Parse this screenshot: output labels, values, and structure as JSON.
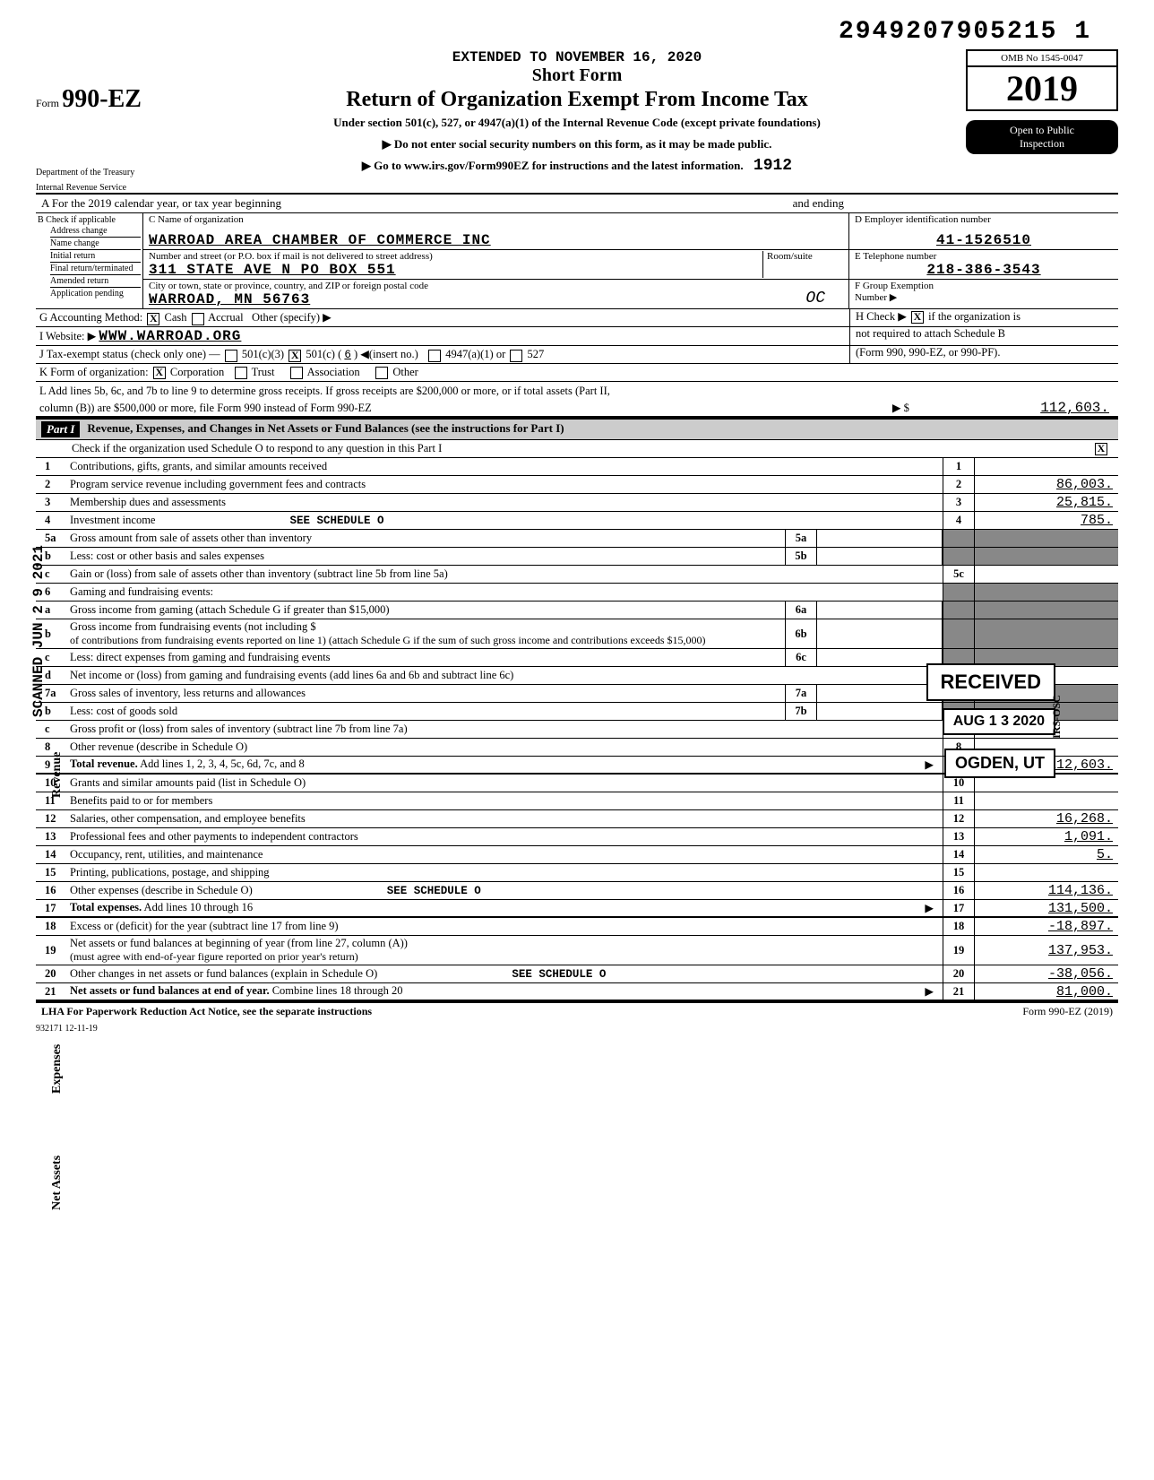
{
  "page_number_top": "2949207905215  1",
  "header": {
    "form_prefix": "Form",
    "form_number": "990-EZ",
    "extended_line": "EXTENDED TO NOVEMBER 16, 2020",
    "short_form": "Short Form",
    "title": "Return of Organization Exempt From Income Tax",
    "under_section": "Under section 501(c), 527, or 4947(a)(1) of the Internal Revenue Code (except private foundations)",
    "no_ssn": "▶ Do not enter social security numbers on this form, as it may be made public.",
    "goto": "▶ Go to www.irs.gov/Form990EZ for instructions and the latest information.",
    "handwritten_code": "1912",
    "omb": "OMB No  1545-0047",
    "year": "2019",
    "open_public": "Open to Public",
    "inspection": "Inspection",
    "dept1": "Department of the Treasury",
    "dept2": "Internal Revenue Service"
  },
  "row_a": {
    "label": "A   For the 2019 calendar year, or tax year beginning",
    "ending": "and ending"
  },
  "block_b": {
    "header": "B  Check if applicable",
    "items": [
      "Address change",
      "Name change",
      "Initial return",
      "Final return/terminated",
      "Amended return",
      "Application pending"
    ]
  },
  "block_c": {
    "name_label": "C Name of organization",
    "name_value": "WARROAD AREA CHAMBER OF COMMERCE INC",
    "addr_label": "Number and street (or P.O. box if mail is not delivered to street address)",
    "addr_value": "311 STATE AVE N PO BOX 551",
    "room_label": "Room/suite",
    "city_label": "City or town, state or province, country, and ZIP or foreign postal code",
    "city_value": "WARROAD, MN   56763",
    "handwritten_oc": "OC"
  },
  "block_d": {
    "ein_label": "D Employer identification number",
    "ein_value": "41-1526510",
    "phone_label": "E  Telephone number",
    "phone_value": "218-386-3543",
    "group_label": "F  Group Exemption",
    "group_label2": "Number ▶"
  },
  "row_g": {
    "label": "G   Accounting Method:",
    "cash": "Cash",
    "accrual": "Accrual",
    "other": "Other (specify) ▶"
  },
  "row_h": "H  Check  ▶         if the organization is",
  "row_h2": "not required to attach Schedule B",
  "row_h3": "(Form 990, 990-EZ, or 990-PF).",
  "row_i": {
    "label": "I    Website: ▶",
    "value": "WWW.WARROAD.ORG"
  },
  "row_j": {
    "label": "J    Tax-exempt status (check only one) —",
    "opt1": "501(c)(3)",
    "opt2": "501(c) (",
    "opt2v": "6",
    "opt2b": ") ◀(insert no.)",
    "opt3": "4947(a)(1) or",
    "opt4": "527"
  },
  "row_k": {
    "label": "K   Form of organization:",
    "corp": "Corporation",
    "trust": "Trust",
    "assoc": "Association",
    "other": "Other"
  },
  "row_l": {
    "line1": "L   Add lines 5b, 6c, and 7b to line 9 to determine gross receipts. If gross receipts are $200,000 or more, or if total assets (Part II,",
    "line2": "column (B)) are $500,000 or more, file Form 990 instead of Form 990-EZ",
    "arrow": "▶  $",
    "value": "112,603."
  },
  "part1": {
    "label": "Part I",
    "title": "Revenue, Expenses, and Changes in Net Assets or Fund Balances (see the instructions for Part I)",
    "check_line": "Check if the organization used Schedule O to respond to any question in this Part I",
    "check_x": "X"
  },
  "lines": {
    "1": {
      "n": "1",
      "d": "Contributions, gifts, grants, and similar amounts received",
      "rn": "1",
      "v": ""
    },
    "2": {
      "n": "2",
      "d": "Program service revenue including government fees and contracts",
      "rn": "2",
      "v": "86,003."
    },
    "3": {
      "n": "3",
      "d": "Membership dues and assessments",
      "rn": "3",
      "v": "25,815."
    },
    "4": {
      "n": "4",
      "d": "Investment income",
      "note": "SEE SCHEDULE O",
      "rn": "4",
      "v": "785."
    },
    "5a": {
      "n": "5a",
      "d": "Gross amount from sale of assets other than inventory",
      "mn": "5a"
    },
    "5b": {
      "n": "b",
      "d": "Less: cost or other basis and sales expenses",
      "mn": "5b"
    },
    "5c": {
      "n": "c",
      "d": "Gain or (loss) from sale of assets other than inventory (subtract line 5b from line 5a)",
      "rn": "5c",
      "v": ""
    },
    "6": {
      "n": "6",
      "d": "Gaming and fundraising events:"
    },
    "6a": {
      "n": "a",
      "d": "Gross income from gaming (attach Schedule G if greater than $15,000)",
      "mn": "6a"
    },
    "6b": {
      "n": "b",
      "d": "Gross income from fundraising events (not including $",
      "d2": "of contributions from fundraising events reported on line 1) (attach Schedule G if the sum of such gross income and contributions exceeds $15,000)",
      "mn": "6b"
    },
    "6c": {
      "n": "c",
      "d": "Less: direct expenses from gaming and fundraising events",
      "mn": "6c"
    },
    "6d": {
      "n": "d",
      "d": "Net income or (loss) from gaming and fundraising events (add lines 6a and 6b and subtract line 6c)",
      "rn": "6d",
      "v": ""
    },
    "7a": {
      "n": "7a",
      "d": "Gross sales of inventory, less returns and allowances",
      "mn": "7a"
    },
    "7b": {
      "n": "b",
      "d": "Less: cost of goods sold",
      "mn": "7b"
    },
    "7c": {
      "n": "c",
      "d": "Gross profit or (loss) from sales of inventory (subtract line 7b from line 7a)",
      "rn": "7c",
      "v": ""
    },
    "8": {
      "n": "8",
      "d": "Other revenue (describe in Schedule O)",
      "rn": "8",
      "v": ""
    },
    "9": {
      "n": "9",
      "d": "Total revenue. Add lines 1, 2, 3, 4, 5c, 6d, 7c, and 8",
      "arrow": "▶",
      "rn": "9",
      "v": "112,603."
    },
    "10": {
      "n": "10",
      "d": "Grants and similar amounts paid (list in Schedule O)",
      "rn": "10",
      "v": ""
    },
    "11": {
      "n": "11",
      "d": "Benefits paid to or for members",
      "rn": "11",
      "v": ""
    },
    "12": {
      "n": "12",
      "d": "Salaries, other compensation, and employee benefits",
      "rn": "12",
      "v": "16,268."
    },
    "13": {
      "n": "13",
      "d": "Professional fees and other payments to independent contractors",
      "rn": "13",
      "v": "1,091."
    },
    "14": {
      "n": "14",
      "d": "Occupancy, rent, utilities, and maintenance",
      "rn": "14",
      "v": "5."
    },
    "15": {
      "n": "15",
      "d": "Printing, publications, postage, and shipping",
      "rn": "15",
      "v": ""
    },
    "16": {
      "n": "16",
      "d": "Other expenses (describe in Schedule O)",
      "note": "SEE SCHEDULE O",
      "rn": "16",
      "v": "114,136."
    },
    "17": {
      "n": "17",
      "d": "Total expenses. Add lines 10 through 16",
      "arrow": "▶",
      "rn": "17",
      "v": "131,500."
    },
    "18": {
      "n": "18",
      "d": "Excess or (deficit) for the year (subtract line 17 from line 9)",
      "rn": "18",
      "v": "-18,897."
    },
    "19": {
      "n": "19",
      "d": "Net assets or fund balances at beginning of year (from line 27, column (A))",
      "d2": "(must agree with end-of-year figure reported on prior year's return)",
      "rn": "19",
      "v": "137,953."
    },
    "20": {
      "n": "20",
      "d": "Other changes in net assets or fund balances (explain in Schedule O)",
      "note": "SEE SCHEDULE O",
      "rn": "20",
      "v": "-38,056."
    },
    "21": {
      "n": "21",
      "d": "Net assets or fund balances at end of year. Combine lines 18 through 20",
      "arrow": "▶",
      "rn": "21",
      "v": "81,000."
    }
  },
  "footer": {
    "lha": "LHA   For Paperwork Reduction Act Notice, see the separate instructions",
    "form": "Form 990-EZ (2019)",
    "code": "932171  12-11-19"
  },
  "side": {
    "revenue": "Revenue",
    "expenses": "Expenses",
    "net_assets": "Net Assets",
    "scanned": "SCANNED JUN 2 9 2021"
  },
  "stamps": {
    "received": "RECEIVED",
    "date": "AUG 1 3 2020",
    "location": "OGDEN, UT",
    "side": "IRS-OSC"
  }
}
